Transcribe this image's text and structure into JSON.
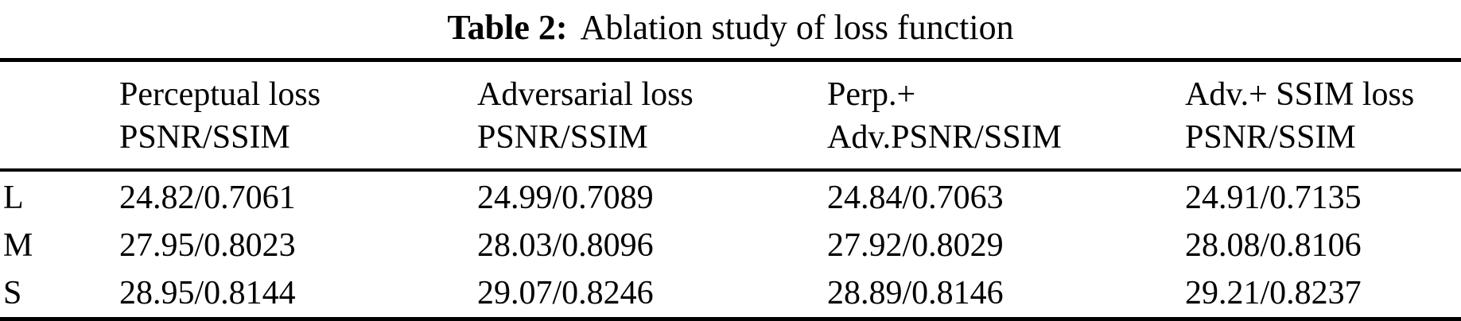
{
  "caption": {
    "label": "Table 2:",
    "text": "Ablation study of loss function"
  },
  "table": {
    "columns": [
      {
        "line1": "",
        "line2": ""
      },
      {
        "line1": "Perceptual loss",
        "line2": "PSNR/SSIM"
      },
      {
        "line1": "Adversarial loss",
        "line2": "PSNR/SSIM"
      },
      {
        "line1": "Perp.+",
        "line2": "Adv.PSNR/SSIM"
      },
      {
        "line1": "Adv.+ SSIM loss",
        "line2": "PSNR/SSIM"
      }
    ],
    "rows": [
      {
        "label": "L",
        "cells": [
          "24.82/0.7061",
          "24.99/0.7089",
          "24.84/0.7063",
          "24.91/0.7135"
        ]
      },
      {
        "label": "M",
        "cells": [
          "27.95/0.8023",
          "28.03/0.8096",
          "27.92/0.8029",
          "28.08/0.8106"
        ]
      },
      {
        "label": "S",
        "cells": [
          "28.95/0.8144",
          "29.07/0.8246",
          "28.89/0.8146",
          "29.21/0.8237"
        ]
      }
    ]
  },
  "colors": {
    "text": "#000000",
    "background": "#ffffff",
    "rule": "#000000"
  }
}
